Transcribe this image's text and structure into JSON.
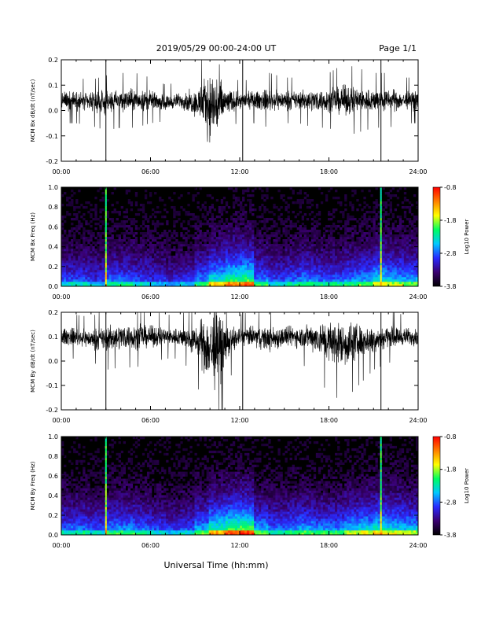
{
  "header": {
    "title": "2019/05/29  00:00-24:00 UT",
    "page": "Page 1/1"
  },
  "footer": {
    "xlabel": "Universal Time (hh:mm)"
  },
  "colorbar": {
    "label": "Log10 Power",
    "ticks": [
      "-0.8",
      "-1.8",
      "-2.8",
      "-3.8"
    ],
    "colors": [
      "#000000",
      "#3a0070",
      "#2a2aff",
      "#00c8ff",
      "#00ff60",
      "#ffff00",
      "#ff8000",
      "#ff0000"
    ]
  },
  "chart_data": [
    {
      "type": "line",
      "ylabel": "MCM Bx dB/dt (nT/sec)",
      "xlim": [
        0,
        24
      ],
      "ylim": [
        -0.2,
        0.2
      ],
      "x_ticks": [
        "00:00",
        "06:00",
        "12:00",
        "18:00",
        "24:00"
      ],
      "y_ticks": [
        "0.2",
        "0.1",
        "0.0",
        "-0.1",
        "-0.2"
      ],
      "series": [
        {
          "x": [
            0,
            1,
            2,
            3,
            4,
            5,
            6,
            7,
            8,
            9,
            9.5,
            10,
            10.5,
            11,
            12,
            13,
            14,
            15,
            16,
            17,
            18,
            19,
            20,
            21,
            22,
            23,
            24
          ],
          "y_center": [
            0.04,
            0.04,
            0.03,
            0.03,
            0.04,
            0.04,
            0.04,
            0.03,
            0.04,
            0.03,
            0.03,
            0.02,
            0.02,
            0.03,
            0.04,
            0.04,
            0.04,
            0.04,
            0.04,
            0.04,
            0.04,
            0.04,
            0.04,
            0.04,
            0.04,
            0.04,
            0.04
          ],
          "y_amplitude": [
            0.05,
            0.05,
            0.05,
            0.06,
            0.06,
            0.06,
            0.05,
            0.04,
            0.04,
            0.07,
            0.12,
            0.18,
            0.2,
            0.08,
            0.04,
            0.05,
            0.06,
            0.05,
            0.05,
            0.06,
            0.06,
            0.08,
            0.07,
            0.06,
            0.06,
            0.05,
            0.05
          ]
        }
      ],
      "spikes": [
        {
          "x": 3.0,
          "min": -0.2,
          "max": 0.2
        },
        {
          "x": 12.2,
          "min": -0.2,
          "max": 0.2
        },
        {
          "x": 21.5,
          "min": -0.2,
          "max": 0.2
        }
      ]
    },
    {
      "type": "heatmap",
      "ylabel": "MCM Bx Freq (Hz)",
      "xlim": [
        0,
        24
      ],
      "ylim": [
        0.0,
        1.0
      ],
      "x_ticks": [
        "00:00",
        "06:00",
        "12:00",
        "18:00",
        "24:00"
      ],
      "y_ticks": [
        "1.0",
        "0.8",
        "0.6",
        "0.4",
        "0.2",
        "0.0"
      ],
      "zlim": [
        -3.8,
        -0.8
      ],
      "activity": [
        0.5,
        0.5,
        0.45,
        0.55,
        0.55,
        0.5,
        0.45,
        0.4,
        0.45,
        0.6,
        0.8,
        0.9,
        0.95,
        0.6,
        0.5,
        0.55,
        0.6,
        0.55,
        0.55,
        0.6,
        0.65,
        0.75,
        0.7,
        0.65,
        0.55
      ],
      "lines": [
        3.0,
        21.5
      ]
    },
    {
      "type": "line",
      "ylabel": "MCM By dB/dt (nT/sec)",
      "xlim": [
        0,
        24
      ],
      "ylim": [
        -0.2,
        0.2
      ],
      "x_ticks": [
        "00:00",
        "06:00",
        "12:00",
        "18:00",
        "24:00"
      ],
      "y_ticks": [
        "0.2",
        "0.1",
        "0.0",
        "-0.1",
        "-0.2"
      ],
      "series": [
        {
          "x": [
            0,
            1,
            2,
            3,
            4,
            5,
            6,
            7,
            8,
            9,
            9.5,
            10,
            10.5,
            11,
            12,
            13,
            14,
            15,
            16,
            17,
            18,
            19,
            20,
            21,
            22,
            23,
            24
          ],
          "y_center": [
            0.1,
            0.1,
            0.09,
            0.09,
            0.1,
            0.1,
            0.1,
            0.1,
            0.1,
            0.08,
            0.07,
            0.05,
            0.05,
            0.07,
            0.1,
            0.1,
            0.09,
            0.1,
            0.1,
            0.1,
            0.08,
            0.07,
            0.08,
            0.09,
            0.1,
            0.1,
            0.1
          ],
          "y_amplitude": [
            0.05,
            0.05,
            0.05,
            0.07,
            0.07,
            0.07,
            0.06,
            0.05,
            0.05,
            0.08,
            0.14,
            0.22,
            0.24,
            0.1,
            0.05,
            0.06,
            0.07,
            0.06,
            0.06,
            0.08,
            0.12,
            0.13,
            0.1,
            0.07,
            0.06,
            0.05,
            0.05
          ]
        }
      ],
      "spikes": [
        {
          "x": 3.0,
          "min": -0.2,
          "max": 0.2
        },
        {
          "x": 12.2,
          "min": -0.2,
          "max": 0.2
        },
        {
          "x": 21.5,
          "min": -0.2,
          "max": 0.2
        }
      ]
    },
    {
      "type": "heatmap",
      "ylabel": "MCM By Freq (Hz)",
      "xlim": [
        0,
        24
      ],
      "ylim": [
        0.0,
        1.0
      ],
      "x_ticks": [
        "00:00",
        "06:00",
        "12:00",
        "18:00",
        "24:00"
      ],
      "y_ticks": [
        "1.0",
        "0.8",
        "0.6",
        "0.4",
        "0.2",
        "0.0"
      ],
      "zlim": [
        -3.8,
        -0.8
      ],
      "activity": [
        0.55,
        0.55,
        0.5,
        0.6,
        0.6,
        0.55,
        0.5,
        0.45,
        0.5,
        0.65,
        0.85,
        0.95,
        1.0,
        0.65,
        0.55,
        0.6,
        0.65,
        0.6,
        0.6,
        0.7,
        0.75,
        0.8,
        0.75,
        0.7,
        0.6
      ],
      "lines": [
        3.0,
        21.5
      ]
    }
  ]
}
